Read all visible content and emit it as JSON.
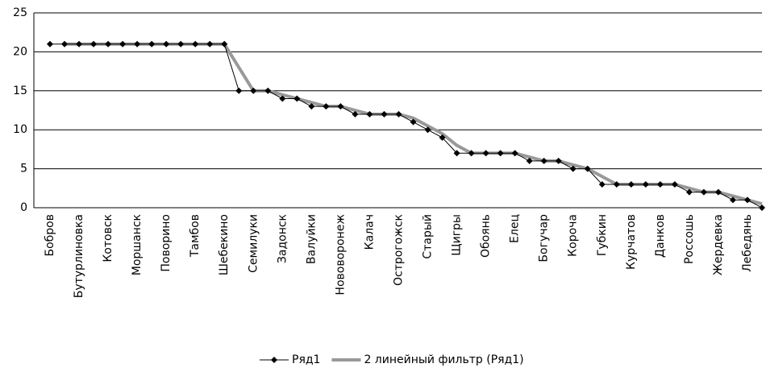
{
  "chart_data": {
    "type": "line",
    "categories": [
      "Бобров",
      null,
      "Бутурлиновка",
      null,
      "Котовск",
      null,
      "Моршанск",
      null,
      "Поворино",
      null,
      "Тамбов",
      null,
      "Шебекино",
      null,
      "Семилуки",
      null,
      "Задонск",
      null,
      "Валуйки",
      null,
      "Нововоронеж",
      null,
      "Калач",
      null,
      "Острогожск",
      null,
      "Старый",
      null,
      "Щигры",
      null,
      "Обоянь",
      null,
      "Елец",
      null,
      "Богучар",
      null,
      "Короча",
      null,
      "Губкин",
      null,
      "Курчатов",
      null,
      "Данков",
      null,
      "Россошь",
      null,
      "Жердевка",
      null,
      "Лебедянь",
      null
    ],
    "series": [
      {
        "name": "Ряд1",
        "color": "#000000",
        "values": [
          21,
          21,
          21,
          21,
          21,
          21,
          21,
          21,
          21,
          21,
          21,
          21,
          21,
          15,
          15,
          15,
          14,
          14,
          13,
          13,
          13,
          12,
          12,
          12,
          12,
          11,
          10,
          9,
          7,
          7,
          7,
          7,
          7,
          6,
          6,
          6,
          5,
          5,
          3,
          3,
          3,
          3,
          3,
          3,
          2,
          2,
          2,
          1,
          1,
          0
        ]
      },
      {
        "name": "2 линейный фильтр (Ряд1)",
        "color": "#999999",
        "values": [
          null,
          21,
          21,
          21,
          21,
          21,
          21,
          21,
          21,
          21,
          21,
          21,
          21,
          18,
          15,
          15,
          14.5,
          14,
          13.5,
          13,
          13,
          12.5,
          12,
          12,
          12,
          11.5,
          10.5,
          9.5,
          8,
          7,
          7,
          7,
          7,
          6.5,
          6,
          6,
          5.5,
          5,
          4,
          3,
          3,
          3,
          3,
          3,
          2.5,
          2,
          2,
          1.5,
          1,
          0.5
        ]
      }
    ],
    "ylim": [
      0,
      25
    ],
    "yticks": [
      0,
      5,
      10,
      15,
      20,
      25
    ],
    "grid": true,
    "legend": "bottom"
  }
}
